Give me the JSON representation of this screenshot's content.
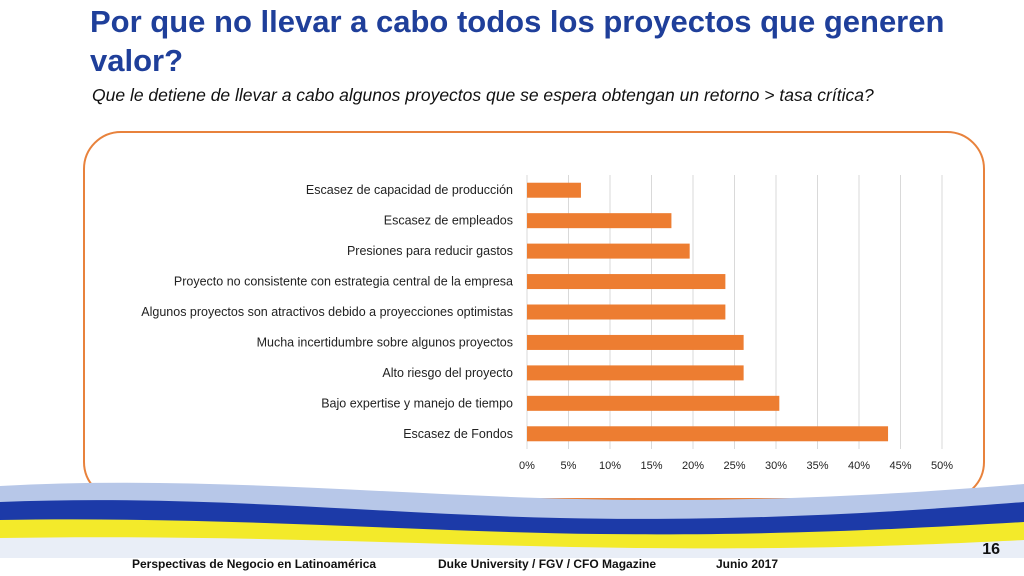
{
  "slide": {
    "title": "Por que no llevar a cabo todos los proyectos que generen valor?",
    "subtitle": "Que le detiene de llevar a cabo algunos proyectos que se espera obtengan un retorno > tasa crítica?"
  },
  "footer": {
    "left": "Perspectivas de Negocio en Latinoamérica",
    "center": "Duke University / FGV / CFO Magazine",
    "date": "Junio 2017",
    "page": "16"
  },
  "colors": {
    "title": "#1f3f9a",
    "bar": "#ed7d31",
    "frame": "#e8823c",
    "wave_blue": "#1c3aa8",
    "wave_yellow": "#f3ea2a"
  },
  "chart_data": {
    "type": "bar",
    "orientation": "horizontal",
    "title": "",
    "xlabel": "",
    "ylabel": "",
    "xlim": [
      0,
      0.5
    ],
    "grid": true,
    "legend": "none",
    "ticks": [
      "0%",
      "5%",
      "10%",
      "15%",
      "20%",
      "25%",
      "30%",
      "35%",
      "40%",
      "45%",
      "50%"
    ],
    "categories": [
      "Escasez de capacidad de producción",
      "Escasez de empleados",
      "Presiones para reducir gastos",
      "Proyecto no consistente con estrategia central de la empresa",
      "Algunos proyectos son atractivos debido a proyecciones optimistas",
      "Mucha incertidumbre sobre algunos proyectos",
      "Alto riesgo del proyecto",
      "Bajo expertise y manejo de tiempo",
      "Escasez de Fondos"
    ],
    "values": [
      0.065,
      0.174,
      0.196,
      0.239,
      0.239,
      0.261,
      0.261,
      0.304,
      0.435
    ]
  }
}
